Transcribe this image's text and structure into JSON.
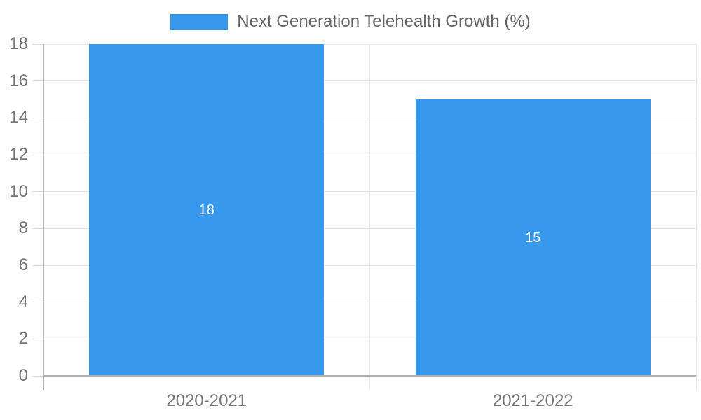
{
  "legend": {
    "label": "Next Generation Telehealth Growth (%)"
  },
  "chart_data": {
    "type": "bar",
    "title": "Next Generation Telehealth Growth (%)",
    "categories": [
      "2020-2021",
      "2021-2022"
    ],
    "values": [
      18,
      15
    ],
    "bar_value_labels": [
      "18",
      "15"
    ],
    "xlabel": "",
    "ylabel": "",
    "ylim": [
      0,
      18
    ],
    "yticks": [
      0,
      2,
      4,
      6,
      8,
      10,
      12,
      14,
      16,
      18
    ],
    "grid": true,
    "legend_position": "top",
    "legend_entries": [
      "Next Generation Telehealth Growth (%)"
    ]
  },
  "colors": {
    "bar": "#3898ec",
    "grid": "#e6e6e6",
    "axis": "#b0b0b0",
    "tick_text": "#757575",
    "legend_text": "#666666",
    "bar_value_text": "#ffffff"
  }
}
